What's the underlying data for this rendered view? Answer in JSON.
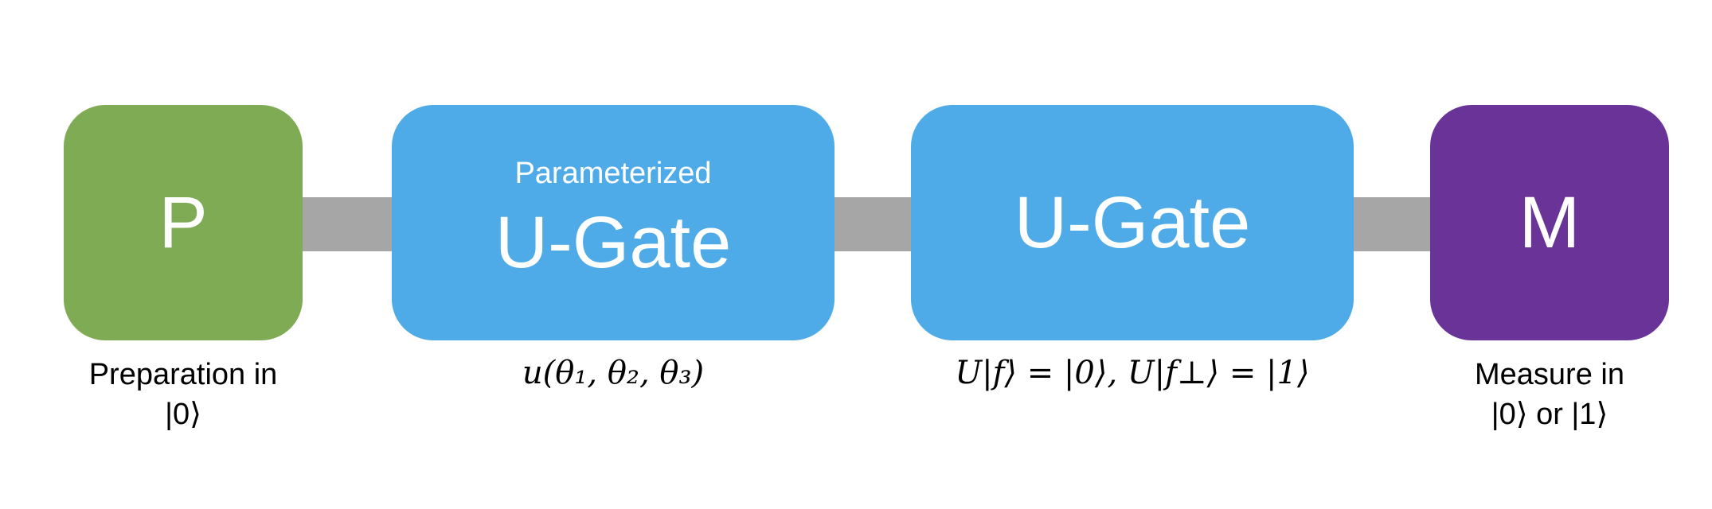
{
  "colors": {
    "preparation_block": "#7eab54",
    "gate_block": "#4fabe8",
    "measure_block": "#693397",
    "wire": "#a6a6a6"
  },
  "blocks": {
    "preparation": {
      "label": "P",
      "caption": "Preparation in\n|0⟩"
    },
    "parameterized_gate": {
      "sublabel": "Parameterized",
      "label": "U-Gate",
      "caption": "u(θ₁, θ₂, θ₃)"
    },
    "gate": {
      "label": "U-Gate",
      "caption": "U|f⟩ = |0⟩, U|f⊥⟩ = |1⟩"
    },
    "measure": {
      "label": "M",
      "caption": "Measure in\n|0⟩ or |1⟩"
    }
  }
}
